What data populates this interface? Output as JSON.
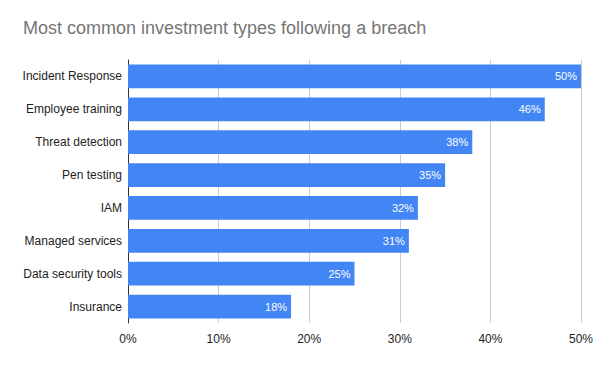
{
  "chart_data": {
    "type": "bar",
    "title": "Most common investment types following a breach",
    "orientation": "horizontal",
    "categories": [
      "Incident Response",
      "Employee training",
      "Threat detection",
      "Pen testing",
      "IAM",
      "Managed services",
      "Data security tools",
      "Insurance"
    ],
    "values": [
      50,
      46,
      38,
      35,
      32,
      31,
      25,
      18
    ],
    "value_labels": [
      "50%",
      "46%",
      "38%",
      "35%",
      "32%",
      "31%",
      "25%",
      "18%"
    ],
    "color": "#4285f4",
    "xlim": [
      0,
      50
    ],
    "xticks": [
      {
        "value": 0,
        "label": "0%"
      },
      {
        "value": 10,
        "label": "10%"
      },
      {
        "value": 20,
        "label": "20%"
      },
      {
        "value": 30,
        "label": "30%"
      },
      {
        "value": 40,
        "label": "40%"
      },
      {
        "value": 50,
        "label": "50%"
      }
    ],
    "grid": true,
    "data_labels": true
  }
}
